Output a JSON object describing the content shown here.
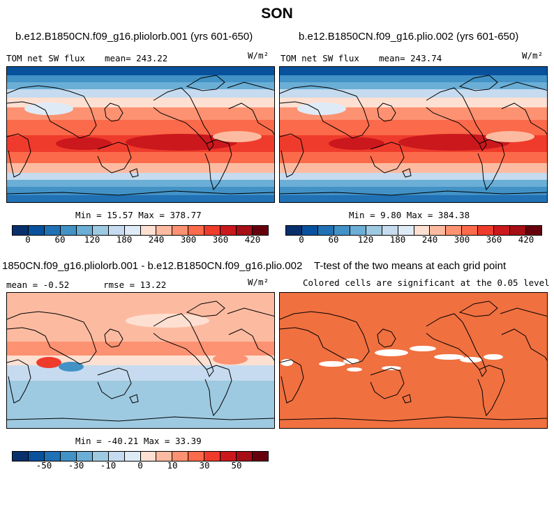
{
  "title": "SON",
  "panels": [
    {
      "title": "b.e12.B1850CN.f09_g16.pliolorb.001 (yrs 601-650)",
      "left_label": "TOM net SW flux",
      "center_label": "mean= 243.22",
      "units": "W/m²",
      "stats": "Min =   15.57 Max = 378.77",
      "colorbar_ticks": [
        "0",
        "60",
        "120",
        "180",
        "240",
        "300",
        "360",
        "420"
      ]
    },
    {
      "title": "b.e12.B1850CN.f09_g16.plio.002 (yrs 601-650)",
      "left_label": "TOM net SW flux",
      "center_label": "mean= 243.74",
      "units": "W/m²",
      "stats": "Min =    9.80 Max = 384.38",
      "colorbar_ticks": [
        "0",
        "60",
        "120",
        "180",
        "240",
        "300",
        "360",
        "420"
      ]
    },
    {
      "title": "1850CN.f09_g16.pliolorb.001 - b.e12.B1850CN.f09_g16.plio.002",
      "left_label": "mean =  -0.52",
      "center_label": "rmse =  13.22",
      "units": "W/m²",
      "stats": "Min = -40.21 Max =  33.39",
      "colorbar_ticks": [
        "-50",
        "-30",
        "-10",
        "0",
        "10",
        "30",
        "50"
      ]
    },
    {
      "title": "T-test of the two means at each grid point",
      "center_label": "Colored cells are significant at the 0.05 level"
    }
  ],
  "colors": {
    "abs_scale": [
      "#08306b",
      "#08519c",
      "#2171b5",
      "#4292c6",
      "#6baed6",
      "#9ecae1",
      "#c6dbef",
      "#deebf7",
      "#fee0d2",
      "#fcbba1",
      "#fc9272",
      "#fb6a4a",
      "#ef3b2c",
      "#cb181d",
      "#a50f15",
      "#67000d"
    ],
    "diff_scale": [
      "#08306b",
      "#08519c",
      "#2171b5",
      "#4292c6",
      "#6baed6",
      "#9ecae1",
      "#c6dbef",
      "#deebf7",
      "#fee0d2",
      "#fcbba1",
      "#fc9272",
      "#fb6a4a",
      "#ef3b2c",
      "#cb181d",
      "#a50f15",
      "#67000d"
    ],
    "ttest_fill": "#f07040"
  },
  "chart_data": [
    {
      "type": "heatmap",
      "title": "b.e12.B1850CN.f09_g16.pliolorb.001 (yrs 601-650)",
      "variable": "TOM net SW flux",
      "units": "W/m2",
      "mean": 243.22,
      "min": 15.57,
      "max": 378.77,
      "colorbar_ticks": [
        0,
        60,
        120,
        180,
        240,
        300,
        360,
        420
      ]
    },
    {
      "type": "heatmap",
      "title": "b.e12.B1850CN.f09_g16.plio.002 (yrs 601-650)",
      "variable": "TOM net SW flux",
      "units": "W/m2",
      "mean": 243.74,
      "min": 9.8,
      "max": 384.38,
      "colorbar_ticks": [
        0,
        60,
        120,
        180,
        240,
        300,
        360,
        420
      ]
    },
    {
      "type": "heatmap",
      "title": "1850CN.f09_g16.pliolorb.001 - b.e12.B1850CN.f09_g16.plio.002",
      "units": "W/m2",
      "mean": -0.52,
      "rmse": 13.22,
      "min": -40.21,
      "max": 33.39,
      "colorbar_ticks": [
        -50,
        -30,
        -10,
        0,
        10,
        30,
        50
      ]
    },
    {
      "type": "heatmap",
      "title": "T-test of the two means at each grid point",
      "subtitle": "Colored cells are significant at the 0.05 level"
    }
  ]
}
